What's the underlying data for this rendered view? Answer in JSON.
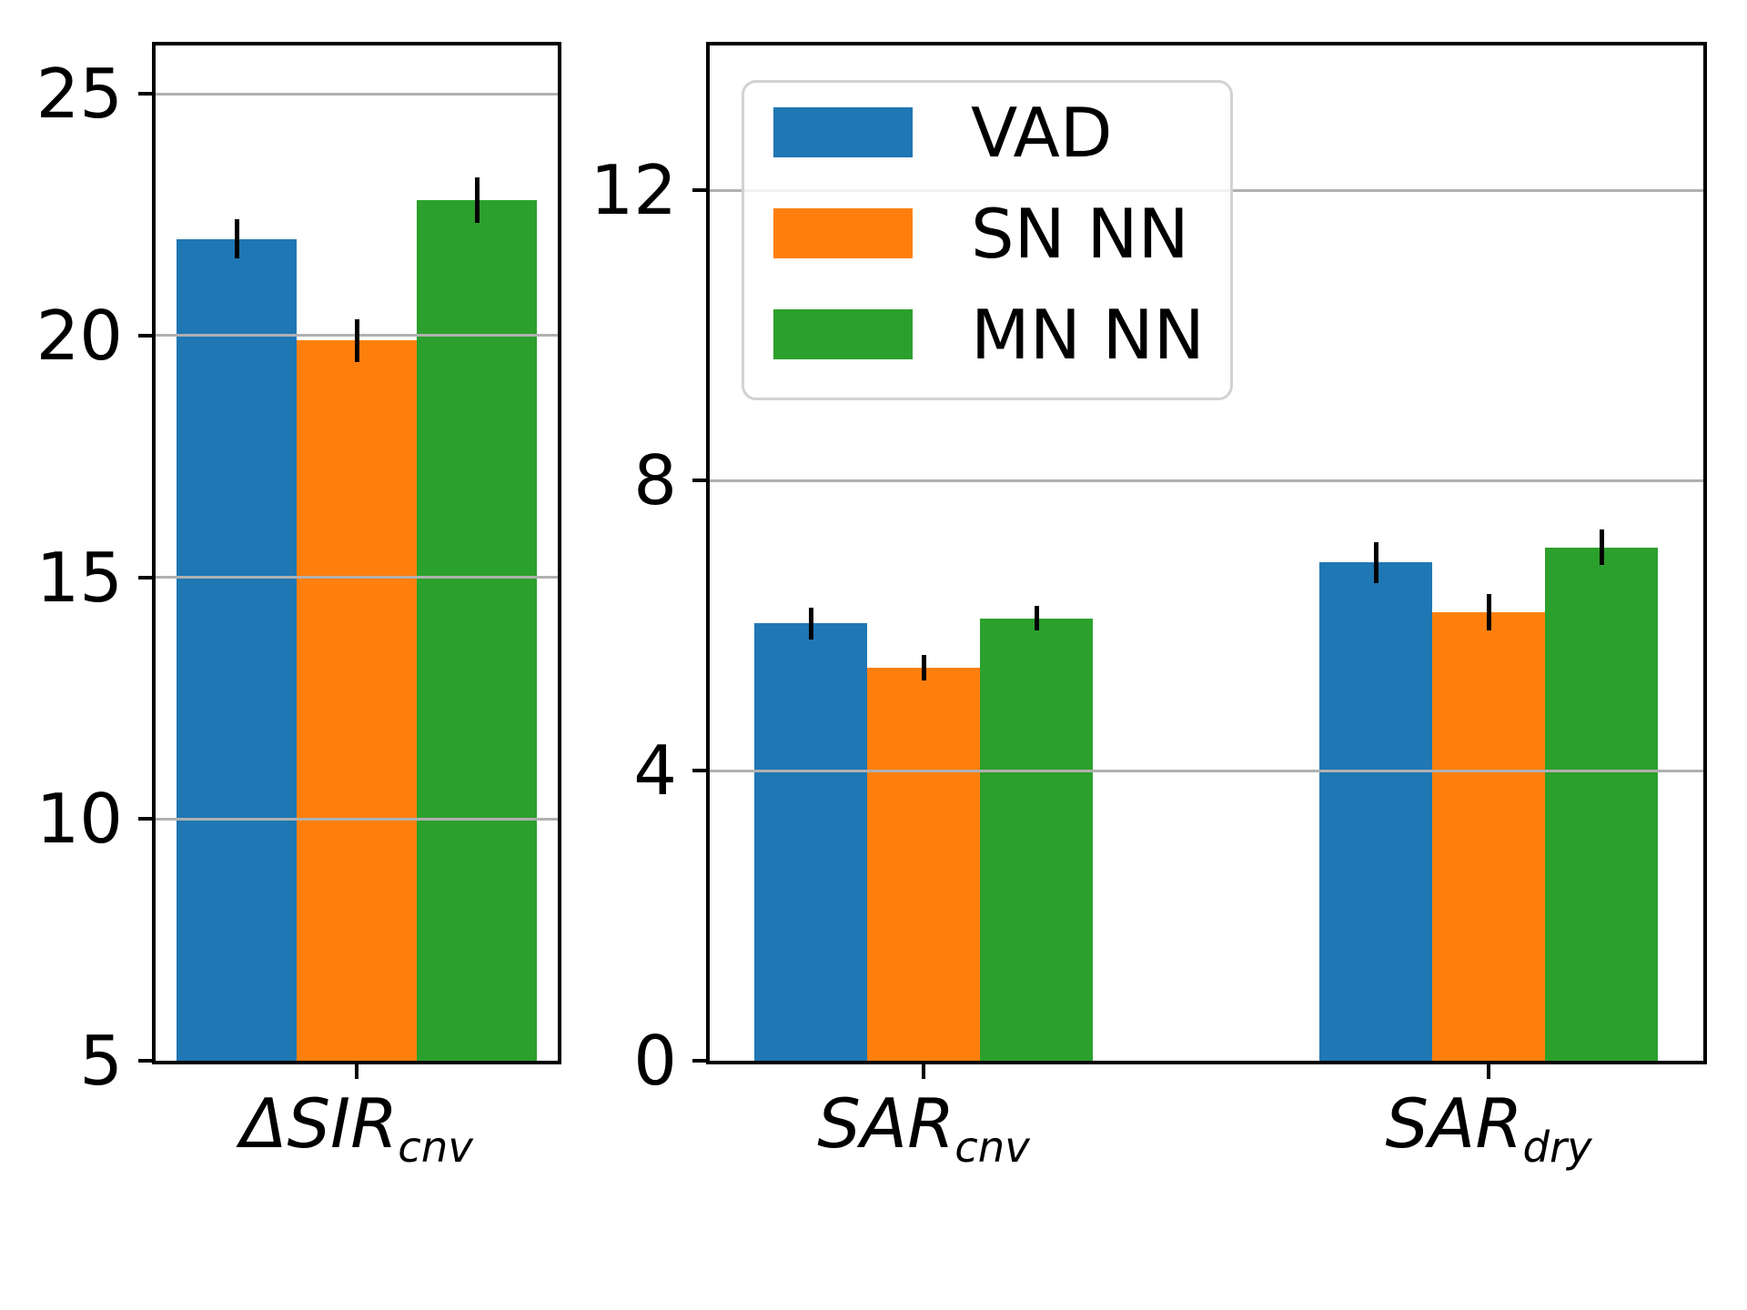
{
  "figure": {
    "background": "#ffffff",
    "spine_color": "#000000",
    "grid_color": "#b0b0b0",
    "error_bar_color": "#000000"
  },
  "legend": {
    "position": "upper left of right subplot",
    "entries": [
      {
        "label": "VAD",
        "color": "#1f77b4",
        "swatch": "blue-rect"
      },
      {
        "label": "SN NN",
        "color": "#ff7f0e",
        "swatch": "orange-rect"
      },
      {
        "label": "MN NN",
        "color": "#2ca02c",
        "swatch": "green-rect"
      }
    ]
  },
  "chart_data": [
    {
      "type": "bar",
      "title": "",
      "xlabel": "",
      "ylabel": "",
      "categories": [
        {
          "main": "ΔSIR",
          "sub": "cnv"
        }
      ],
      "series": [
        {
          "name": "VAD",
          "color": "#1f77b4",
          "values": [
            22.0
          ],
          "errors": [
            0.4
          ]
        },
        {
          "name": "SN NN",
          "color": "#ff7f0e",
          "values": [
            19.9
          ],
          "errors": [
            0.44
          ]
        },
        {
          "name": "MN NN",
          "color": "#2ca02c",
          "values": [
            22.8
          ],
          "errors": [
            0.47
          ]
        }
      ],
      "ylim": [
        5,
        26
      ],
      "yticks": [
        5,
        10,
        15,
        20,
        25
      ],
      "grid": true,
      "grid_above_bars": true,
      "legend_shown": false
    },
    {
      "type": "bar",
      "title": "",
      "xlabel": "",
      "ylabel": "",
      "categories": [
        {
          "main": "SAR",
          "sub": "cnv"
        },
        {
          "main": "SAR",
          "sub": "dry"
        }
      ],
      "series": [
        {
          "name": "VAD",
          "color": "#1f77b4",
          "values": [
            6.03,
            6.87
          ],
          "errors": [
            0.22,
            0.28
          ]
        },
        {
          "name": "SN NN",
          "color": "#ff7f0e",
          "values": [
            5.42,
            6.18
          ],
          "errors": [
            0.18,
            0.25
          ]
        },
        {
          "name": "MN NN",
          "color": "#2ca02c",
          "values": [
            6.1,
            7.08
          ],
          "errors": [
            0.17,
            0.24
          ]
        }
      ],
      "ylim": [
        0,
        14
      ],
      "yticks": [
        0,
        4,
        8,
        12
      ],
      "grid": true,
      "grid_above_bars": true,
      "legend_shown": true,
      "legend_position": "upper left"
    }
  ]
}
